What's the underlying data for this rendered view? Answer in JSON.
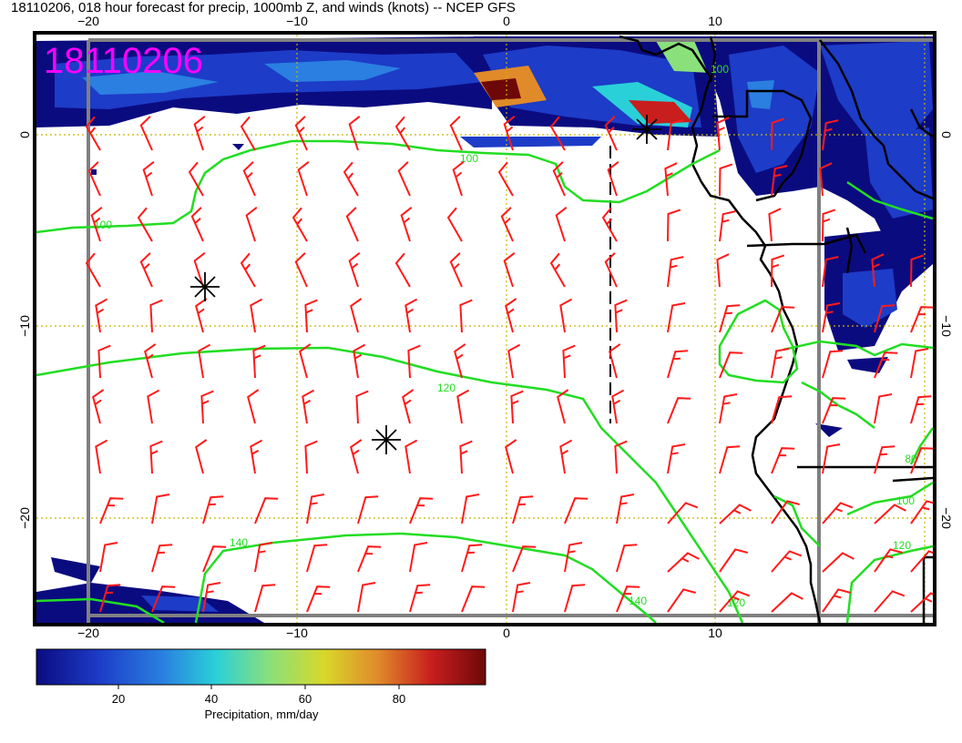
{
  "title": "18110206, 018 hour forecast for precip, 1000mb Z, and winds (knots) -- NCEP GFS",
  "date_stamp": "18110206",
  "axes": {
    "lon_ticks": [
      "−20",
      "−10",
      "0",
      "10"
    ],
    "lat_ticks": [
      "0",
      "−10",
      "−20"
    ]
  },
  "contours": {
    "label_100_a": "100",
    "label_100_b": "100",
    "label_100_c": "100",
    "label_100_d": "100",
    "label_120_a": "120",
    "label_120_b": "120",
    "label_120_c": "120",
    "label_140_a": "140",
    "label_140_b": "140",
    "label_80": "80"
  },
  "colorbar": {
    "ticks": [
      "20",
      "40",
      "60",
      "80"
    ],
    "label": "Precipitation, mm/day",
    "colors": [
      "#0b0b80",
      "#1d3cc8",
      "#2a7fe0",
      "#2ad0d8",
      "#8ae07a",
      "#d8d82a",
      "#e08a2a",
      "#c81e1e",
      "#6e0808"
    ]
  },
  "colors": {
    "wind_barb": "#ff1a1a",
    "contour": "#22dd22",
    "coast": "#000000",
    "grid": "#c8b400",
    "frame": "#808080",
    "stamp": "#ff00ff"
  }
}
